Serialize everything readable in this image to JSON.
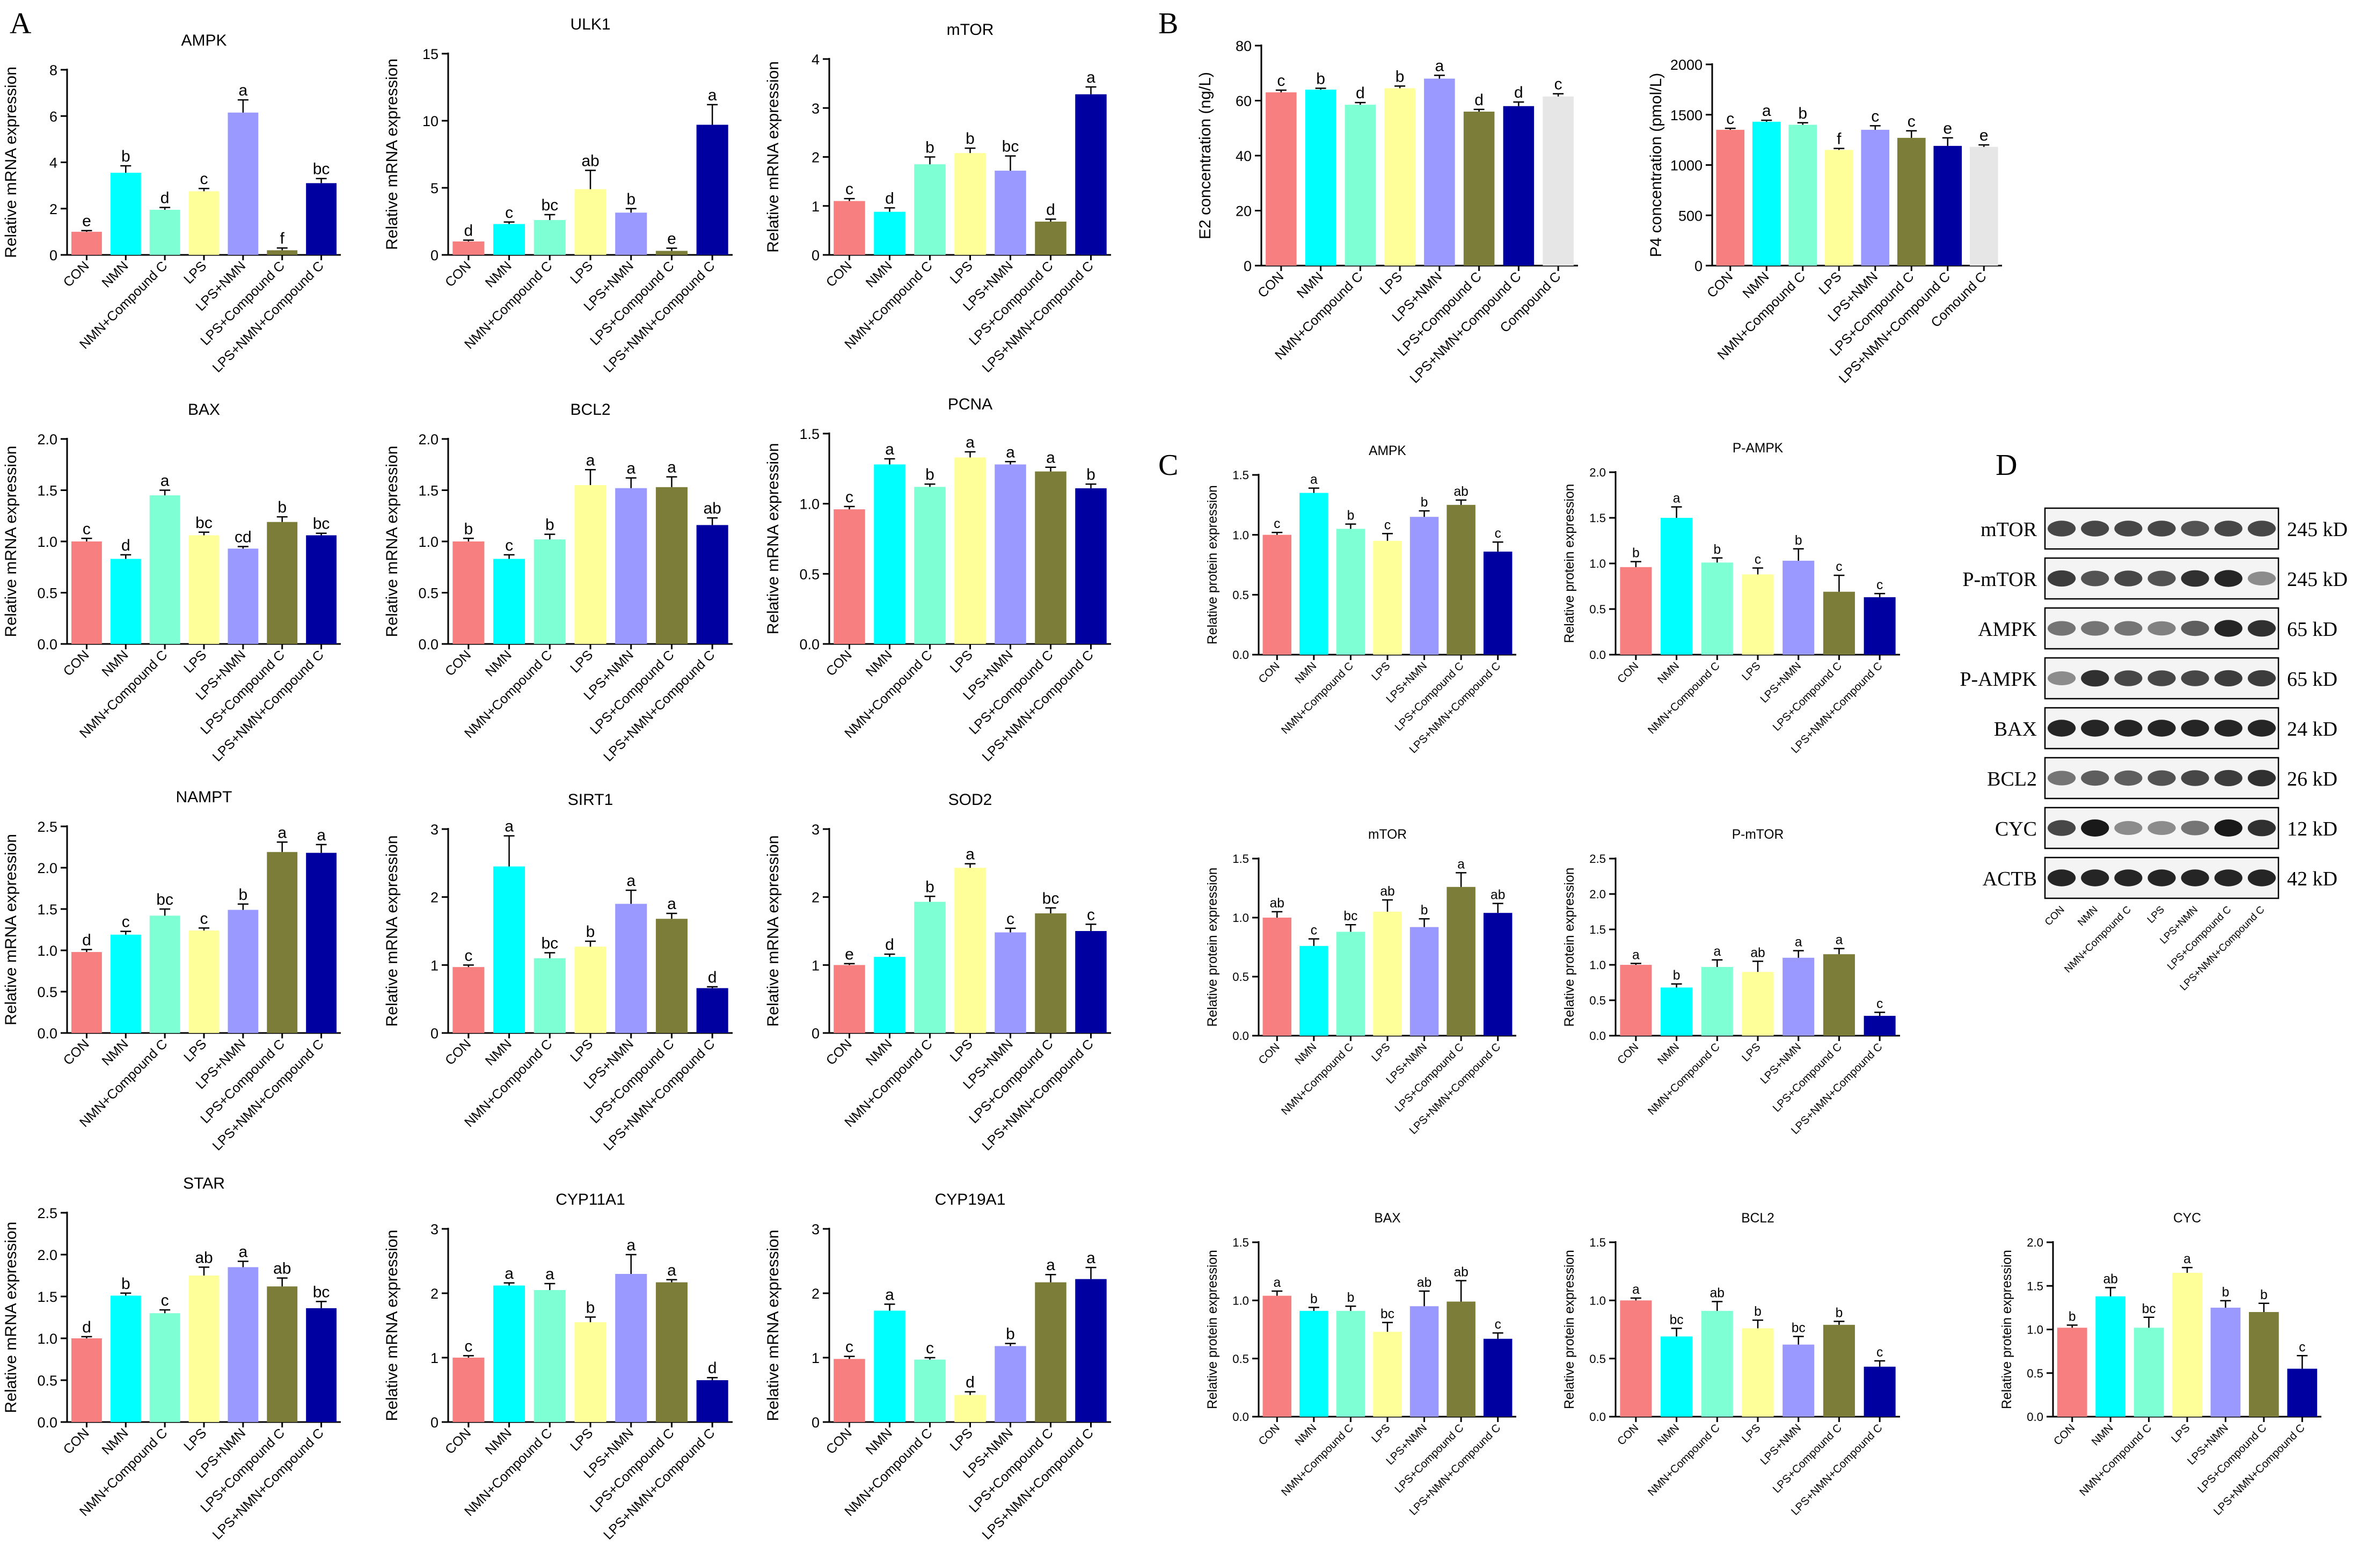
{
  "panels": {
    "A": "A",
    "B": "B",
    "C": "C",
    "D": "D"
  },
  "colors": [
    "#f77f7f",
    "#00ffff",
    "#7fffd4",
    "#ffff99",
    "#9999ff",
    "#7d7d3a",
    "#0000a0",
    "#e6e6e6"
  ],
  "groups7": [
    "CON",
    "NMN",
    "NMN+Compound C",
    "LPS",
    "LPS+NMN",
    "LPS+Compound C",
    "LPS+NMN+Compound C"
  ],
  "chart_data": [
    {
      "panel": "A",
      "type": "bar",
      "title": "AMPK",
      "ylabel": "Relative mRNA expression",
      "ylim": [
        0,
        8
      ],
      "yticks": [
        0,
        2,
        4,
        6,
        8
      ],
      "values": [
        1.0,
        3.55,
        1.95,
        2.75,
        6.15,
        0.2,
        3.1
      ],
      "errors": [
        0.05,
        0.3,
        0.1,
        0.12,
        0.55,
        0.1,
        0.2
      ],
      "letters": [
        "e",
        "b",
        "d",
        "c",
        "a",
        "f",
        "bc"
      ]
    },
    {
      "panel": "A",
      "type": "bar",
      "title": "ULK1",
      "ylabel": "Relative mRNA expression",
      "ylim": [
        0,
        15
      ],
      "yticks": [
        0,
        5,
        10,
        15
      ],
      "values": [
        1.0,
        2.3,
        2.6,
        4.9,
        3.15,
        0.3,
        9.7
      ],
      "errors": [
        0.1,
        0.15,
        0.4,
        1.4,
        0.3,
        0.2,
        1.5
      ],
      "letters": [
        "d",
        "c",
        "bc",
        "ab",
        "b",
        "e",
        "a"
      ]
    },
    {
      "panel": "A",
      "type": "bar",
      "title": "mTOR",
      "ylabel": "Relative mRNA expression",
      "ylim": [
        0,
        4
      ],
      "yticks": [
        0,
        1,
        2,
        3,
        4
      ],
      "values": [
        1.1,
        0.88,
        1.85,
        2.08,
        1.72,
        0.68,
        3.28
      ],
      "errors": [
        0.05,
        0.08,
        0.15,
        0.1,
        0.3,
        0.05,
        0.15
      ],
      "letters": [
        "c",
        "d",
        "b",
        "b",
        "bc",
        "d",
        "a"
      ]
    },
    {
      "panel": "A",
      "type": "bar",
      "title": "BAX",
      "ylabel": "Relative mRNA expression",
      "ylim": [
        0,
        2.0
      ],
      "yticks": [
        0,
        0.5,
        1.0,
        1.5,
        2.0
      ],
      "values": [
        1.0,
        0.83,
        1.45,
        1.06,
        0.93,
        1.19,
        1.06
      ],
      "errors": [
        0.03,
        0.04,
        0.05,
        0.03,
        0.02,
        0.05,
        0.02
      ],
      "letters": [
        "c",
        "d",
        "a",
        "bc",
        "cd",
        "b",
        "bc"
      ]
    },
    {
      "panel": "A",
      "type": "bar",
      "title": "BCL2",
      "ylabel": "Relative mRNA expression",
      "ylim": [
        0,
        2.0
      ],
      "yticks": [
        0,
        0.5,
        1.0,
        1.5,
        2.0
      ],
      "values": [
        1.0,
        0.83,
        1.02,
        1.55,
        1.52,
        1.53,
        1.16
      ],
      "errors": [
        0.03,
        0.04,
        0.05,
        0.15,
        0.1,
        0.1,
        0.07
      ],
      "letters": [
        "b",
        "c",
        "b",
        "a",
        "a",
        "a",
        "ab"
      ]
    },
    {
      "panel": "A",
      "type": "bar",
      "title": "PCNA",
      "ylabel": "Relative mRNA expression",
      "ylim": [
        0,
        1.5
      ],
      "yticks": [
        0,
        0.5,
        1.0,
        1.5
      ],
      "values": [
        0.96,
        1.28,
        1.12,
        1.33,
        1.28,
        1.23,
        1.11
      ],
      "errors": [
        0.02,
        0.04,
        0.02,
        0.04,
        0.02,
        0.03,
        0.03
      ],
      "letters": [
        "c",
        "a",
        "b",
        "a",
        "a",
        "a",
        "b"
      ]
    },
    {
      "panel": "A",
      "type": "bar",
      "title": "NAMPT",
      "ylabel": "Relative mRNA expression",
      "ylim": [
        0,
        2.5
      ],
      "yticks": [
        0,
        0.5,
        1.0,
        1.5,
        2.0,
        2.5
      ],
      "values": [
        0.98,
        1.19,
        1.42,
        1.24,
        1.49,
        2.19,
        2.18
      ],
      "errors": [
        0.03,
        0.04,
        0.08,
        0.03,
        0.07,
        0.12,
        0.1
      ],
      "letters": [
        "d",
        "c",
        "bc",
        "c",
        "b",
        "a",
        "a"
      ]
    },
    {
      "panel": "A",
      "type": "bar",
      "title": "SIRT1",
      "ylabel": "Relative mRNA expression",
      "ylim": [
        0,
        3
      ],
      "yticks": [
        0,
        1,
        2,
        3
      ],
      "values": [
        0.97,
        2.45,
        1.1,
        1.27,
        1.9,
        1.68,
        0.66
      ],
      "errors": [
        0.03,
        0.45,
        0.08,
        0.08,
        0.2,
        0.08,
        0.02
      ],
      "letters": [
        "c",
        "a",
        "bc",
        "b",
        "a",
        "a",
        "d"
      ]
    },
    {
      "panel": "A",
      "type": "bar",
      "title": "SOD2",
      "ylabel": "Relative mRNA expression",
      "ylim": [
        0,
        3
      ],
      "yticks": [
        0,
        1,
        2,
        3
      ],
      "values": [
        1.0,
        1.12,
        1.93,
        2.43,
        1.48,
        1.76,
        1.5
      ],
      "errors": [
        0.02,
        0.04,
        0.08,
        0.06,
        0.06,
        0.08,
        0.1
      ],
      "letters": [
        "e",
        "d",
        "b",
        "a",
        "c",
        "bc",
        "c"
      ]
    },
    {
      "panel": "A",
      "type": "bar",
      "title": "STAR",
      "ylabel": "Relative mRNA expression",
      "ylim": [
        0,
        2.5
      ],
      "yticks": [
        0,
        0.5,
        1.0,
        1.5,
        2.0,
        2.5
      ],
      "values": [
        1.0,
        1.51,
        1.3,
        1.75,
        1.85,
        1.62,
        1.36
      ],
      "errors": [
        0.02,
        0.03,
        0.04,
        0.1,
        0.07,
        0.1,
        0.08
      ],
      "letters": [
        "d",
        "b",
        "c",
        "ab",
        "a",
        "ab",
        "bc"
      ]
    },
    {
      "panel": "A",
      "type": "bar",
      "title": "CYP11A1",
      "ylabel": "Relative mRNA expression",
      "ylim": [
        0,
        3
      ],
      "yticks": [
        0,
        1,
        2,
        3
      ],
      "values": [
        1.0,
        2.12,
        2.05,
        1.55,
        2.3,
        2.17,
        0.65
      ],
      "errors": [
        0.03,
        0.04,
        0.1,
        0.08,
        0.3,
        0.04,
        0.04
      ],
      "letters": [
        "c",
        "a",
        "a",
        "b",
        "a",
        "a",
        "d"
      ]
    },
    {
      "panel": "A",
      "type": "bar",
      "title": "CYP19A1",
      "ylabel": "Relative mRNA expression",
      "ylim": [
        0,
        3
      ],
      "yticks": [
        0,
        1,
        2,
        3
      ],
      "values": [
        0.98,
        1.73,
        0.97,
        0.42,
        1.18,
        2.17,
        2.22
      ],
      "errors": [
        0.04,
        0.1,
        0.03,
        0.05,
        0.04,
        0.12,
        0.18
      ],
      "letters": [
        "c",
        "a",
        "c",
        "d",
        "b",
        "a",
        "a"
      ]
    },
    {
      "panel": "B",
      "type": "bar",
      "title": "",
      "ylabel": "E2 concentration (ng/L)",
      "ylim": [
        0,
        80
      ],
      "yticks": [
        0,
        20,
        40,
        60,
        80
      ],
      "categories": [
        "CON",
        "NMN",
        "NMN+Compound C",
        "LPS",
        "LPS+NMN",
        "LPS+Compound C",
        "LPS+NMN+Compound C",
        "Compound C"
      ],
      "values": [
        63,
        64,
        58.5,
        64.5,
        68,
        56,
        58,
        61.5
      ],
      "errors": [
        0.8,
        0.5,
        0.8,
        0.8,
        1.2,
        0.8,
        1.5,
        1.0
      ],
      "letters": [
        "c",
        "b",
        "d",
        "b",
        "a",
        "d",
        "d",
        "c"
      ]
    },
    {
      "panel": "B",
      "type": "bar",
      "title": "",
      "ylabel": "P4 concentration (pmol/L)",
      "ylim": [
        0,
        2000
      ],
      "yticks": [
        0,
        500,
        1000,
        1500,
        2000
      ],
      "categories": [
        "CON",
        "NMN",
        "NMN+Compound C",
        "LPS",
        "LPS+NMN",
        "LPS+Compound C",
        "LPS+NMN+Compound C",
        "Comound C"
      ],
      "values": [
        1350,
        1430,
        1400,
        1150,
        1350,
        1270,
        1190,
        1180
      ],
      "errors": [
        15,
        15,
        20,
        15,
        40,
        70,
        80,
        20
      ],
      "letters": [
        "c",
        "a",
        "b",
        "f",
        "c",
        "c",
        "e",
        "e"
      ]
    },
    {
      "panel": "C",
      "type": "bar",
      "title": "AMPK",
      "ylabel": "Relative protein expression",
      "ylim": [
        0,
        1.5
      ],
      "yticks": [
        0,
        0.5,
        1.0,
        1.5
      ],
      "values": [
        1.0,
        1.35,
        1.05,
        0.95,
        1.15,
        1.25,
        0.86
      ],
      "errors": [
        0.02,
        0.04,
        0.04,
        0.06,
        0.05,
        0.04,
        0.08
      ],
      "letters": [
        "c",
        "a",
        "b",
        "c",
        "b",
        "ab",
        "c"
      ]
    },
    {
      "panel": "C",
      "type": "bar",
      "title": "P-AMPK",
      "ylabel": "Relative protein expression",
      "ylim": [
        0,
        2.0
      ],
      "yticks": [
        0,
        0.5,
        1.0,
        1.5,
        2.0
      ],
      "values": [
        0.96,
        1.5,
        1.01,
        0.88,
        1.03,
        0.69,
        0.63
      ],
      "errors": [
        0.06,
        0.12,
        0.05,
        0.07,
        0.13,
        0.18,
        0.04
      ],
      "letters": [
        "b",
        "a",
        "b",
        "c",
        "b",
        "c",
        "c"
      ]
    },
    {
      "panel": "C",
      "type": "bar",
      "title": "mTOR",
      "ylabel": "Relative protein expression",
      "ylim": [
        0,
        1.5
      ],
      "yticks": [
        0,
        0.5,
        1.0,
        1.5
      ],
      "values": [
        1.0,
        0.76,
        0.88,
        1.05,
        0.92,
        1.26,
        1.04
      ],
      "errors": [
        0.05,
        0.06,
        0.06,
        0.1,
        0.07,
        0.12,
        0.08
      ],
      "letters": [
        "ab",
        "c",
        "bc",
        "ab",
        "b",
        "a",
        "ab"
      ]
    },
    {
      "panel": "C",
      "type": "bar",
      "title": "P-mTOR",
      "ylabel": "Relative protein expression",
      "ylim": [
        0,
        2.5
      ],
      "yticks": [
        0,
        0.5,
        1.0,
        1.5,
        2.0,
        2.5
      ],
      "values": [
        1.0,
        0.68,
        0.97,
        0.9,
        1.1,
        1.15,
        0.28
      ],
      "errors": [
        0.02,
        0.05,
        0.1,
        0.15,
        0.1,
        0.08,
        0.05
      ],
      "letters": [
        "a",
        "b",
        "a",
        "ab",
        "a",
        "a",
        "c"
      ]
    },
    {
      "panel": "C",
      "type": "bar",
      "title": "BAX",
      "ylabel": "Relative protein expression",
      "ylim": [
        0,
        1.5
      ],
      "yticks": [
        0,
        0.5,
        1.0,
        1.5
      ],
      "values": [
        1.04,
        0.91,
        0.91,
        0.73,
        0.95,
        0.99,
        0.67
      ],
      "errors": [
        0.04,
        0.03,
        0.04,
        0.08,
        0.13,
        0.18,
        0.05
      ],
      "letters": [
        "a",
        "b",
        "b",
        "bc",
        "ab",
        "ab",
        "c"
      ]
    },
    {
      "panel": "C",
      "type": "bar",
      "title": "BCL2",
      "ylabel": "Relative protein expression",
      "ylim": [
        0,
        1.5
      ],
      "yticks": [
        0,
        0.5,
        1.0,
        1.5
      ],
      "values": [
        1.0,
        0.69,
        0.91,
        0.76,
        0.62,
        0.79,
        0.43
      ],
      "errors": [
        0.02,
        0.07,
        0.08,
        0.07,
        0.07,
        0.03,
        0.05
      ],
      "letters": [
        "a",
        "bc",
        "ab",
        "b",
        "bc",
        "b",
        "c"
      ]
    },
    {
      "panel": "C",
      "type": "bar",
      "title": "CYC",
      "ylabel": "Relative protein expression",
      "ylim": [
        0,
        2.0
      ],
      "yticks": [
        0,
        0.5,
        1.0,
        1.5,
        2.0
      ],
      "values": [
        1.02,
        1.38,
        1.02,
        1.65,
        1.25,
        1.2,
        0.55
      ],
      "errors": [
        0.03,
        0.1,
        0.12,
        0.06,
        0.08,
        0.1,
        0.15
      ],
      "letters": [
        "b",
        "ab",
        "bc",
        "a",
        "b",
        "b",
        "c"
      ]
    }
  ],
  "western_blot": {
    "rows": [
      {
        "label": "mTOR",
        "kd": "245 kD"
      },
      {
        "label": "P-mTOR",
        "kd": "245 kD"
      },
      {
        "label": "AMPK",
        "kd": "65 kD"
      },
      {
        "label": "P-AMPK",
        "kd": "65 kD"
      },
      {
        "label": "BAX",
        "kd": "24 kD"
      },
      {
        "label": "BCL2",
        "kd": "26 kD"
      },
      {
        "label": "CYC",
        "kd": "12 kD"
      },
      {
        "label": "ACTB",
        "kd": "42 kD"
      }
    ],
    "lanes": [
      "CON",
      "NMN",
      "NMN+Compound C",
      "LPS",
      "LPS+NMN",
      "LPS+Compound C",
      "LPS+NMN+Compound C"
    ],
    "intensities": [
      [
        0.8,
        0.8,
        0.8,
        0.8,
        0.75,
        0.8,
        0.8
      ],
      [
        0.85,
        0.75,
        0.8,
        0.75,
        0.9,
        0.95,
        0.5
      ],
      [
        0.6,
        0.6,
        0.6,
        0.55,
        0.7,
        0.95,
        0.9
      ],
      [
        0.5,
        0.9,
        0.8,
        0.8,
        0.8,
        0.85,
        0.85
      ],
      [
        0.95,
        0.95,
        0.95,
        0.95,
        0.95,
        0.95,
        0.95
      ],
      [
        0.6,
        0.7,
        0.7,
        0.75,
        0.8,
        0.85,
        0.9
      ],
      [
        0.8,
        1.0,
        0.5,
        0.5,
        0.6,
        1.0,
        0.9
      ],
      [
        0.95,
        0.95,
        0.95,
        0.95,
        0.95,
        0.95,
        0.95
      ]
    ]
  }
}
